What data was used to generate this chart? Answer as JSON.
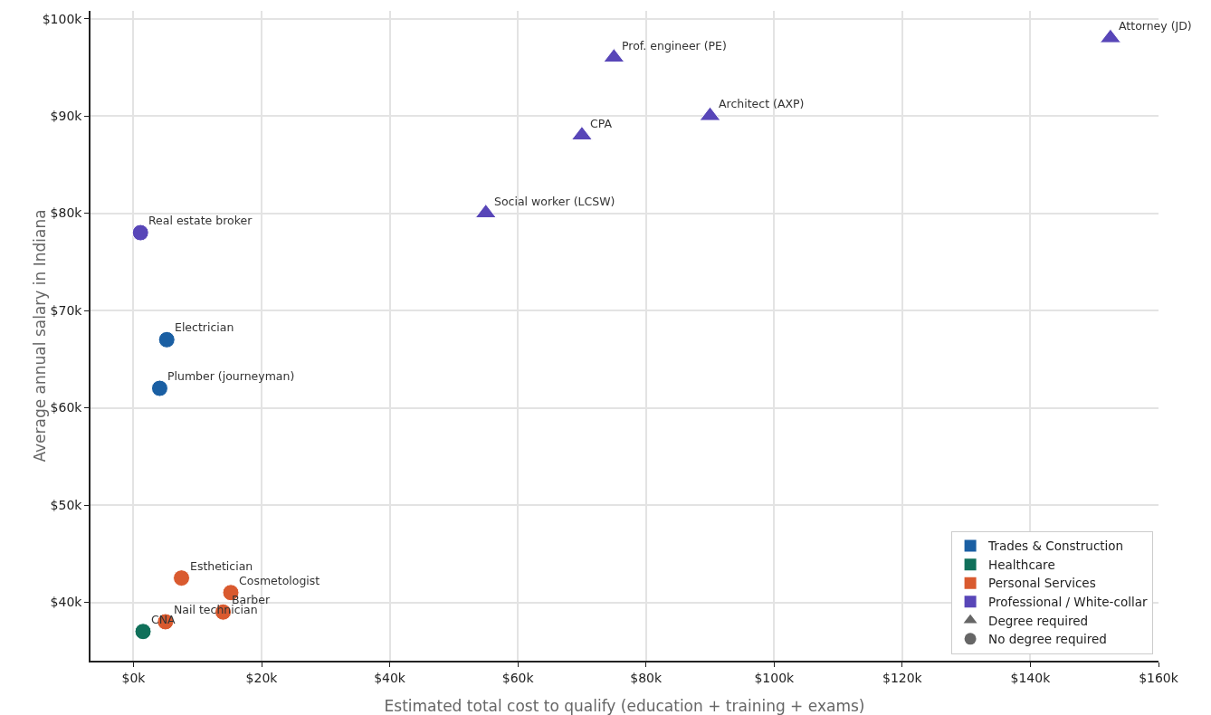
{
  "chart_data": {
    "type": "scatter",
    "xlabel": "Estimated total cost to qualify (education + training + exams)",
    "ylabel": "Average annual salary in Indiana",
    "xlim": [
      -6.7,
      160
    ],
    "ylim": [
      34,
      100.8
    ],
    "xticks": [
      {
        "value": 0,
        "label": "$0k"
      },
      {
        "value": 20,
        "label": "$20k"
      },
      {
        "value": 40,
        "label": "$40k"
      },
      {
        "value": 60,
        "label": "$60k"
      },
      {
        "value": 80,
        "label": "$80k"
      },
      {
        "value": 100,
        "label": "$100k"
      },
      {
        "value": 120,
        "label": "$120k"
      },
      {
        "value": 140,
        "label": "$140k"
      },
      {
        "value": 160,
        "label": "$160k"
      }
    ],
    "yticks": [
      {
        "value": 40,
        "label": "$40k"
      },
      {
        "value": 50,
        "label": "$50k"
      },
      {
        "value": 60,
        "label": "$60k"
      },
      {
        "value": 70,
        "label": "$70k"
      },
      {
        "value": 80,
        "label": "$80k"
      },
      {
        "value": 90,
        "label": "$90k"
      },
      {
        "value": 100,
        "label": "$100k"
      }
    ],
    "grid": true,
    "legend": "bottom right",
    "series": [
      {
        "name": "Trades & Construction",
        "color": "#1a5fa3",
        "marker": "circle",
        "x": [
          5.2,
          4.1
        ],
        "values": [
          67,
          62
        ]
      },
      {
        "name": "Healthcare",
        "color": "#10705a",
        "marker": "circle",
        "x": [
          1.5
        ],
        "values": [
          37
        ]
      },
      {
        "name": "Personal Services",
        "color": "#d95a2f",
        "marker": "circle",
        "x": [
          7.5,
          15.2,
          14,
          5
        ],
        "values": [
          42.5,
          41,
          39,
          38
        ]
      },
      {
        "name": "Professional / White-collar",
        "color": "#5846b8",
        "marker": "triangle",
        "x": [
          152.5,
          75,
          90,
          70,
          55
        ],
        "values": [
          98,
          96,
          90,
          88,
          80
        ]
      },
      {
        "color": "#5846b8",
        "marker": "circle",
        "x": [
          1.1
        ],
        "values": [
          78
        ]
      },
      {
        "name": "Degree required",
        "color": "#666666",
        "marker": "triangle"
      },
      {
        "name": "No degree required",
        "color": "#666666",
        "marker": "circle"
      }
    ],
    "annotations": [
      {
        "text": "Attorney (JD)",
        "x": 152.5,
        "y": 98
      },
      {
        "text": "Prof. engineer (PE)",
        "x": 75,
        "y": 96
      },
      {
        "text": "Architect (AXP)",
        "x": 90,
        "y": 90
      },
      {
        "text": "CPA",
        "x": 70,
        "y": 88
      },
      {
        "text": "Social worker (LCSW)",
        "x": 55,
        "y": 80
      },
      {
        "text": "Real estate broker",
        "x": 1.1,
        "y": 78
      },
      {
        "text": "Electrician",
        "x": 5.2,
        "y": 67
      },
      {
        "text": "Plumber (journeyman)",
        "x": 4.1,
        "y": 62
      },
      {
        "text": "Esthetician",
        "x": 7.5,
        "y": 42.5
      },
      {
        "text": "Cosmetologist",
        "x": 15.2,
        "y": 41
      },
      {
        "text": "Barber",
        "x": 14,
        "y": 39
      },
      {
        "text": "Nail technician",
        "x": 5,
        "y": 38
      },
      {
        "text": "CNA",
        "x": 1.5,
        "y": 37
      }
    ]
  }
}
